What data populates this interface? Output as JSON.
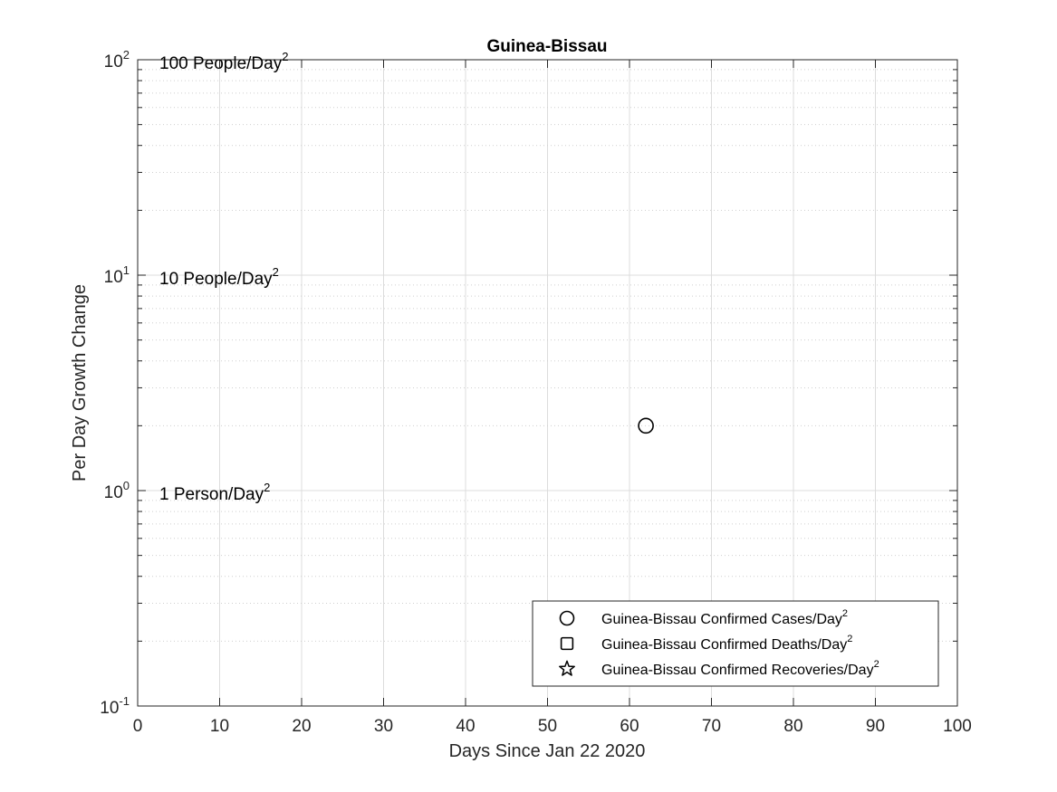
{
  "chart_data": {
    "type": "scatter",
    "title": "Guinea-Bissau",
    "xlabel": "Days Since Jan 22 2020",
    "ylabel": "Per Day Growth Change",
    "xlim": [
      0,
      100
    ],
    "ylim": [
      0.1,
      100
    ],
    "yscale": "log",
    "grid": true,
    "x_ticks": [
      0,
      10,
      20,
      30,
      40,
      50,
      60,
      70,
      80,
      90,
      100
    ],
    "y_ticks": [
      {
        "value": 0.1,
        "base": "10",
        "exp": "-1"
      },
      {
        "value": 1,
        "base": "10",
        "exp": "0"
      },
      {
        "value": 10,
        "base": "10",
        "exp": "1"
      },
      {
        "value": 100,
        "base": "10",
        "exp": "2"
      }
    ],
    "annotations": [
      {
        "y": 100,
        "text": "100 People/Day",
        "sup": "2"
      },
      {
        "y": 10,
        "text": "10 People/Day",
        "sup": "2"
      },
      {
        "y": 1,
        "text": "1 Person/Day",
        "sup": "2"
      }
    ],
    "legend_position": "bottom-right",
    "series": [
      {
        "name": "Guinea-Bissau Confirmed Cases/Day",
        "sup": "2",
        "marker": "circle",
        "points": [
          {
            "x": 62,
            "y": 2
          }
        ]
      },
      {
        "name": "Guinea-Bissau Confirmed Deaths/Day",
        "sup": "2",
        "marker": "square",
        "points": []
      },
      {
        "name": "Guinea-Bissau Confirmed Recoveries/Day",
        "sup": "2",
        "marker": "star",
        "points": []
      }
    ],
    "colors": {
      "marker": "#000000",
      "grid": "#dcdcdc",
      "axis": "#262626"
    }
  }
}
